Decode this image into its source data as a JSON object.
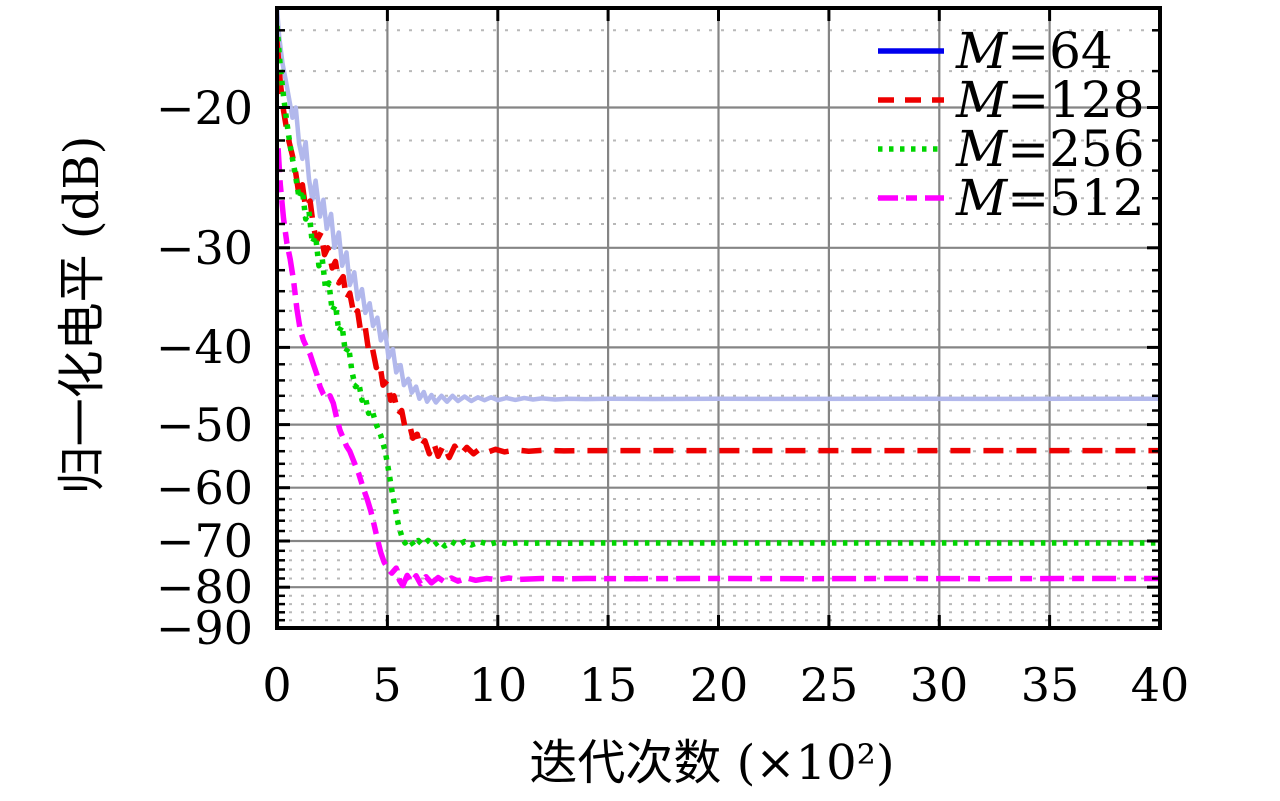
{
  "figure": {
    "background": "#ffffff",
    "x_axis": {
      "label": "迭代次数 (×10²)",
      "tick_labels": [
        "0",
        "5",
        "10",
        "15",
        "20",
        "25",
        "30",
        "35",
        "40"
      ],
      "tick_values": [
        0,
        5,
        10,
        15,
        20,
        25,
        30,
        35,
        40
      ],
      "range": [
        0,
        40
      ]
    },
    "y_axis": {
      "label": "归一化电平 (dB)",
      "tick_labels": [
        "−20",
        "−30",
        "−40",
        "−50",
        "−60",
        "−70",
        "−80",
        "−90"
      ],
      "tick_values": [
        -20,
        -30,
        -40,
        -50,
        -60,
        -70,
        -80,
        -90
      ],
      "minor_tick_values": [
        -16,
        -18,
        -22,
        -24,
        -26,
        -28,
        -32,
        -34,
        -36,
        -38,
        -42,
        -44,
        -46,
        -48,
        -52,
        -54,
        -56,
        -58,
        -62,
        -64,
        -66,
        -68,
        -72,
        -74,
        -76,
        -78,
        -82,
        -84,
        -86,
        -88
      ],
      "range": [
        -15,
        -90
      ],
      "scale": "logarithmic in |dB|"
    },
    "grid": {
      "major_color": "#858585",
      "minor_color": "#b8b8b8",
      "minor_style": "dotted",
      "frame_color": "#000000"
    }
  },
  "chart_data": {
    "type": "line",
    "title": "",
    "xlabel": "迭代次数 (×10²)",
    "ylabel": "归一化电平 (dB)",
    "xlim": [
      0,
      40
    ],
    "ylim": [
      -90,
      -15
    ],
    "y_scale": "log10(|dB|)",
    "grid": true,
    "legend_position": "top-right-inside",
    "series": [
      {
        "name": "M=64",
        "label_var": "M",
        "label_rest": "=64",
        "line_style": "solid",
        "plot_color": "#b2b8ec",
        "legend_color": "#0000ee",
        "width": 4.5,
        "dash": "",
        "converged_level_db": -46.4,
        "points": [
          [
            0,
            -15
          ],
          [
            0.1,
            -16.3
          ],
          [
            0.25,
            -17.6
          ],
          [
            0.4,
            -18.5
          ],
          [
            0.55,
            -19.5
          ],
          [
            0.7,
            -20.6
          ],
          [
            0.85,
            -20.0
          ],
          [
            1.0,
            -22.2
          ],
          [
            1.15,
            -23.2
          ],
          [
            1.3,
            -22.1
          ],
          [
            1.45,
            -24.6
          ],
          [
            1.6,
            -26.1
          ],
          [
            1.75,
            -24.7
          ],
          [
            1.95,
            -27.4
          ],
          [
            2.1,
            -26.1
          ],
          [
            2.25,
            -28.4
          ],
          [
            2.45,
            -27.2
          ],
          [
            2.6,
            -30.0
          ],
          [
            2.8,
            -28.7
          ],
          [
            2.95,
            -31.6
          ],
          [
            3.15,
            -30.4
          ],
          [
            3.3,
            -33.4
          ],
          [
            3.5,
            -32.2
          ],
          [
            3.65,
            -34.8
          ],
          [
            3.85,
            -33.8
          ],
          [
            4.0,
            -36.2
          ],
          [
            4.2,
            -35.2
          ],
          [
            4.35,
            -37.6
          ],
          [
            4.55,
            -36.7
          ],
          [
            4.7,
            -39.2
          ],
          [
            4.9,
            -38.2
          ],
          [
            5.05,
            -41.2
          ],
          [
            5.25,
            -40.2
          ],
          [
            5.4,
            -43.0
          ],
          [
            5.6,
            -42.1
          ],
          [
            5.75,
            -44.6
          ],
          [
            5.95,
            -43.8
          ],
          [
            6.1,
            -45.6
          ],
          [
            6.3,
            -44.8
          ],
          [
            6.45,
            -46.4
          ],
          [
            6.65,
            -45.5
          ],
          [
            6.8,
            -46.8
          ],
          [
            7.0,
            -45.9
          ],
          [
            7.2,
            -46.9
          ],
          [
            7.45,
            -46.0
          ],
          [
            7.7,
            -46.8
          ],
          [
            7.95,
            -46.0
          ],
          [
            8.2,
            -46.7
          ],
          [
            8.5,
            -46.1
          ],
          [
            8.8,
            -46.7
          ],
          [
            9.1,
            -46.2
          ],
          [
            9.4,
            -46.6
          ],
          [
            9.7,
            -46.2
          ],
          [
            10.0,
            -46.6
          ],
          [
            10.4,
            -46.3
          ],
          [
            10.8,
            -46.55
          ],
          [
            11.2,
            -46.3
          ],
          [
            11.6,
            -46.5
          ],
          [
            12.0,
            -46.35
          ],
          [
            12.6,
            -46.5
          ],
          [
            13.2,
            -46.4
          ],
          [
            14,
            -46.45
          ],
          [
            15,
            -46.4
          ],
          [
            17,
            -46.43
          ],
          [
            20,
            -46.4
          ],
          [
            24,
            -46.42
          ],
          [
            28,
            -46.4
          ],
          [
            32,
            -46.42
          ],
          [
            36,
            -46.4
          ],
          [
            40,
            -46.41
          ]
        ]
      },
      {
        "name": "M=128",
        "label_var": "M",
        "label_rest": "=128",
        "line_style": "dashed",
        "plot_color": "#ee0000",
        "legend_color": "#ee0000",
        "width": 5.5,
        "dash": "20 13",
        "converged_level_db": -53.9,
        "points": [
          [
            0,
            -16.5
          ],
          [
            0.15,
            -18.6
          ],
          [
            0.3,
            -20.2
          ],
          [
            0.5,
            -21.8
          ],
          [
            0.7,
            -23.0
          ],
          [
            0.85,
            -24.2
          ],
          [
            1.0,
            -25.8
          ],
          [
            1.15,
            -25.0
          ],
          [
            1.3,
            -26.8
          ],
          [
            1.5,
            -26.2
          ],
          [
            1.65,
            -28.2
          ],
          [
            1.8,
            -29.4
          ],
          [
            2.0,
            -28.7
          ],
          [
            2.15,
            -30.6
          ],
          [
            2.3,
            -30.0
          ],
          [
            2.5,
            -31.8
          ],
          [
            2.65,
            -31.2
          ],
          [
            2.8,
            -33.2
          ],
          [
            3.0,
            -32.6
          ],
          [
            3.15,
            -34.8
          ],
          [
            3.3,
            -34.2
          ],
          [
            3.5,
            -36.6
          ],
          [
            3.65,
            -36.0
          ],
          [
            3.8,
            -38.4
          ],
          [
            4.0,
            -37.8
          ],
          [
            4.15,
            -40.4
          ],
          [
            4.3,
            -39.8
          ],
          [
            4.5,
            -42.4
          ],
          [
            4.65,
            -41.8
          ],
          [
            4.8,
            -44.6
          ],
          [
            5.0,
            -44.0
          ],
          [
            5.15,
            -46.6
          ],
          [
            5.3,
            -46.0
          ],
          [
            5.5,
            -48.6
          ],
          [
            5.65,
            -48.0
          ],
          [
            5.8,
            -50.4
          ],
          [
            6.0,
            -49.9
          ],
          [
            6.15,
            -52.0
          ],
          [
            6.35,
            -51.4
          ],
          [
            6.5,
            -53.4
          ],
          [
            6.7,
            -52.4
          ],
          [
            6.9,
            -54.4
          ],
          [
            7.1,
            -52.7
          ],
          [
            7.3,
            -54.8
          ],
          [
            7.55,
            -53.0
          ],
          [
            7.8,
            -55.0
          ],
          [
            8.05,
            -53.2
          ],
          [
            8.3,
            -54.6
          ],
          [
            8.6,
            -53.4
          ],
          [
            8.9,
            -54.4
          ],
          [
            9.2,
            -53.6
          ],
          [
            9.5,
            -54.2
          ],
          [
            9.9,
            -53.7
          ],
          [
            10.3,
            -54.1
          ],
          [
            10.8,
            -53.8
          ],
          [
            11.4,
            -54.0
          ],
          [
            12,
            -53.85
          ],
          [
            13,
            -53.95
          ],
          [
            14,
            -53.9
          ],
          [
            16,
            -53.9
          ],
          [
            20,
            -53.9
          ],
          [
            24,
            -53.9
          ],
          [
            28,
            -53.9
          ],
          [
            32,
            -53.9
          ],
          [
            36,
            -53.9
          ],
          [
            40,
            -53.9
          ]
        ]
      },
      {
        "name": "M=256",
        "label_var": "M",
        "label_rest": "=256",
        "line_style": "dotted",
        "plot_color": "#00d500",
        "legend_color": "#00d500",
        "width": 5.5,
        "dash": "4.5 6.5",
        "converged_level_db": -70.4,
        "points": [
          [
            0,
            -15.8
          ],
          [
            0.15,
            -17.8
          ],
          [
            0.3,
            -19.4
          ],
          [
            0.5,
            -21.4
          ],
          [
            0.65,
            -22.8
          ],
          [
            0.8,
            -24.0
          ],
          [
            1.0,
            -26.0
          ],
          [
            1.15,
            -25.4
          ],
          [
            1.3,
            -27.6
          ],
          [
            1.45,
            -27.0
          ],
          [
            1.6,
            -29.6
          ],
          [
            1.75,
            -29.0
          ],
          [
            1.9,
            -31.6
          ],
          [
            2.05,
            -31.0
          ],
          [
            2.2,
            -33.8
          ],
          [
            2.35,
            -33.2
          ],
          [
            2.5,
            -36.0
          ],
          [
            2.65,
            -35.4
          ],
          [
            2.8,
            -38.2
          ],
          [
            2.95,
            -37.6
          ],
          [
            3.1,
            -40.6
          ],
          [
            3.25,
            -40.0
          ],
          [
            3.4,
            -43.0
          ],
          [
            3.55,
            -44.8
          ],
          [
            3.7,
            -44.3
          ],
          [
            3.85,
            -46.6
          ],
          [
            4.0,
            -46.1
          ],
          [
            4.15,
            -48.4
          ],
          [
            4.3,
            -47.9
          ],
          [
            4.5,
            -50.0
          ],
          [
            4.7,
            -51.6
          ],
          [
            4.9,
            -54.0
          ],
          [
            5.05,
            -57.0
          ],
          [
            5.2,
            -60.4
          ],
          [
            5.35,
            -63.6
          ],
          [
            5.5,
            -66.8
          ],
          [
            5.65,
            -69.0
          ],
          [
            5.8,
            -70.4
          ],
          [
            6.0,
            -69.6
          ],
          [
            6.2,
            -70.9
          ],
          [
            6.4,
            -69.9
          ],
          [
            6.6,
            -70.8
          ],
          [
            6.85,
            -69.9
          ],
          [
            7.1,
            -70.9
          ],
          [
            7.35,
            -70.0
          ],
          [
            7.6,
            -71.0
          ],
          [
            7.9,
            -70.1
          ],
          [
            8.2,
            -70.9
          ],
          [
            8.5,
            -70.1
          ],
          [
            8.8,
            -70.8
          ],
          [
            9.2,
            -70.15
          ],
          [
            9.6,
            -70.7
          ],
          [
            10.0,
            -70.2
          ],
          [
            10.5,
            -70.6
          ],
          [
            11,
            -70.3
          ],
          [
            11.5,
            -70.5
          ],
          [
            12,
            -70.35
          ],
          [
            13,
            -70.45
          ],
          [
            14,
            -70.4
          ],
          [
            16,
            -70.4
          ],
          [
            20,
            -70.4
          ],
          [
            24,
            -70.4
          ],
          [
            28,
            -70.4
          ],
          [
            32,
            -70.4
          ],
          [
            36,
            -70.4
          ],
          [
            40,
            -70.4
          ]
        ]
      },
      {
        "name": "M=512",
        "label_var": "M",
        "label_rest": "=512",
        "line_style": "dash-dot",
        "plot_color": "#ff00ff",
        "legend_color": "#ff00ff",
        "width": 5.5,
        "dash": "24 8 12 8",
        "converged_level_db": -78.0,
        "points": [
          [
            0.05,
            -22.5
          ],
          [
            0.15,
            -25.0
          ],
          [
            0.3,
            -27.6
          ],
          [
            0.45,
            -29.6
          ],
          [
            0.6,
            -31.0
          ],
          [
            0.75,
            -33.0
          ],
          [
            0.9,
            -35.8
          ],
          [
            1.05,
            -38.0
          ],
          [
            1.2,
            -39.2
          ],
          [
            1.35,
            -40.0
          ],
          [
            1.5,
            -40.8
          ],
          [
            1.65,
            -42.0
          ],
          [
            1.8,
            -43.2
          ],
          [
            1.95,
            -44.8
          ],
          [
            2.1,
            -45.8
          ],
          [
            2.25,
            -46.4
          ],
          [
            2.4,
            -46.0
          ],
          [
            2.55,
            -47.0
          ],
          [
            2.7,
            -49.0
          ],
          [
            2.85,
            -50.8
          ],
          [
            3.0,
            -52.0
          ],
          [
            3.15,
            -53.2
          ],
          [
            3.3,
            -54.0
          ],
          [
            3.5,
            -55.8
          ],
          [
            3.7,
            -57.6
          ],
          [
            3.9,
            -60.0
          ],
          [
            4.1,
            -62.2
          ],
          [
            4.25,
            -64.2
          ],
          [
            4.4,
            -66.8
          ],
          [
            4.55,
            -69.6
          ],
          [
            4.7,
            -72.4
          ],
          [
            4.85,
            -74.4
          ],
          [
            5.0,
            -75.6
          ],
          [
            5.2,
            -76.8
          ],
          [
            5.4,
            -75.7
          ],
          [
            5.55,
            -78.4
          ],
          [
            5.7,
            -79.6
          ],
          [
            5.9,
            -77.3
          ],
          [
            6.1,
            -78.8
          ],
          [
            6.3,
            -77.4
          ],
          [
            6.5,
            -79.2
          ],
          [
            6.75,
            -77.6
          ],
          [
            7.0,
            -79.0
          ],
          [
            7.3,
            -77.8
          ],
          [
            7.6,
            -78.8
          ],
          [
            7.9,
            -77.9
          ],
          [
            8.2,
            -78.6
          ],
          [
            8.6,
            -77.9
          ],
          [
            9.0,
            -78.4
          ],
          [
            9.5,
            -78.0
          ],
          [
            10,
            -78.3
          ],
          [
            10.5,
            -77.9
          ],
          [
            11,
            -78.2
          ],
          [
            12,
            -78.0
          ],
          [
            13,
            -78.1
          ],
          [
            14,
            -78.0
          ],
          [
            16,
            -78.05
          ],
          [
            20,
            -78.0
          ],
          [
            24,
            -78.05
          ],
          [
            28,
            -78.0
          ],
          [
            32,
            -78.05
          ],
          [
            36,
            -78.0
          ],
          [
            40,
            -78.0
          ]
        ]
      }
    ]
  }
}
